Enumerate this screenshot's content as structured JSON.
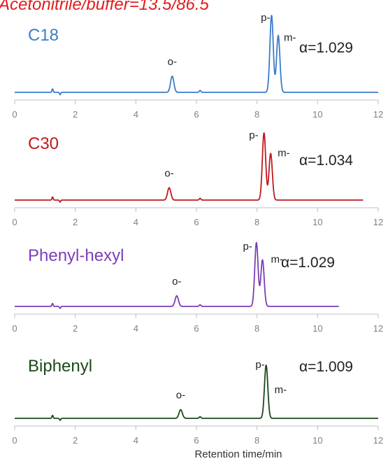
{
  "title": "Acetonitrile/buffer=13.5/86.5",
  "colors": {
    "title": "#e31b1b",
    "axis": "#bfbfbf",
    "tick_text": "#808080"
  },
  "chart_data": [
    {
      "type": "line",
      "label": "C18",
      "color": "#3d7cc9",
      "xlim": [
        0,
        12
      ],
      "x_end": 12,
      "x_ticks": [
        0,
        2,
        4,
        6,
        8,
        10,
        12
      ],
      "peaks": [
        {
          "name": "o-",
          "rt": 5.2,
          "height": 0.21
        },
        {
          "name": "p-",
          "rt": 8.48,
          "height": 1.0
        },
        {
          "name": "m-",
          "rt": 8.7,
          "height": 0.74
        }
      ],
      "alpha": "α=1.029"
    },
    {
      "type": "line",
      "label": "C30",
      "color": "#c0191f",
      "xlim": [
        0,
        12
      ],
      "x_end": 11.5,
      "x_ticks": [
        0,
        2,
        4,
        6,
        8,
        10,
        12
      ],
      "peaks": [
        {
          "name": "o-",
          "rt": 5.1,
          "height": 0.18
        },
        {
          "name": "p-",
          "rt": 8.23,
          "height": 0.98
        },
        {
          "name": "m-",
          "rt": 8.45,
          "height": 0.68
        }
      ],
      "alpha": "α=1.034"
    },
    {
      "type": "line",
      "label": "Phenyl-hexyl",
      "color": "#7a3fb8",
      "xlim": [
        0,
        12
      ],
      "x_end": 10.7,
      "x_ticks": [
        0,
        2,
        4,
        6,
        8,
        10,
        12
      ],
      "peaks": [
        {
          "name": "o-",
          "rt": 5.35,
          "height": 0.16
        },
        {
          "name": "p-",
          "rt": 7.98,
          "height": 0.96
        },
        {
          "name": "m-",
          "rt": 8.18,
          "height": 0.7
        }
      ],
      "alpha": "α=1.029"
    },
    {
      "type": "line",
      "label": "Biphenyl",
      "color": "#1b4a1b",
      "xlim": [
        0,
        12
      ],
      "x_end": 12,
      "x_ticks": [
        0,
        2,
        4,
        6,
        8,
        10,
        12
      ],
      "peaks": [
        {
          "name": "o-",
          "rt": 5.48,
          "height": 0.13
        },
        {
          "name": "p-",
          "rt": 8.3,
          "height": 0.8
        }
      ],
      "alpha": "α=1.009",
      "extra_label": "m-"
    }
  ],
  "xlabel": "Retention time/min"
}
